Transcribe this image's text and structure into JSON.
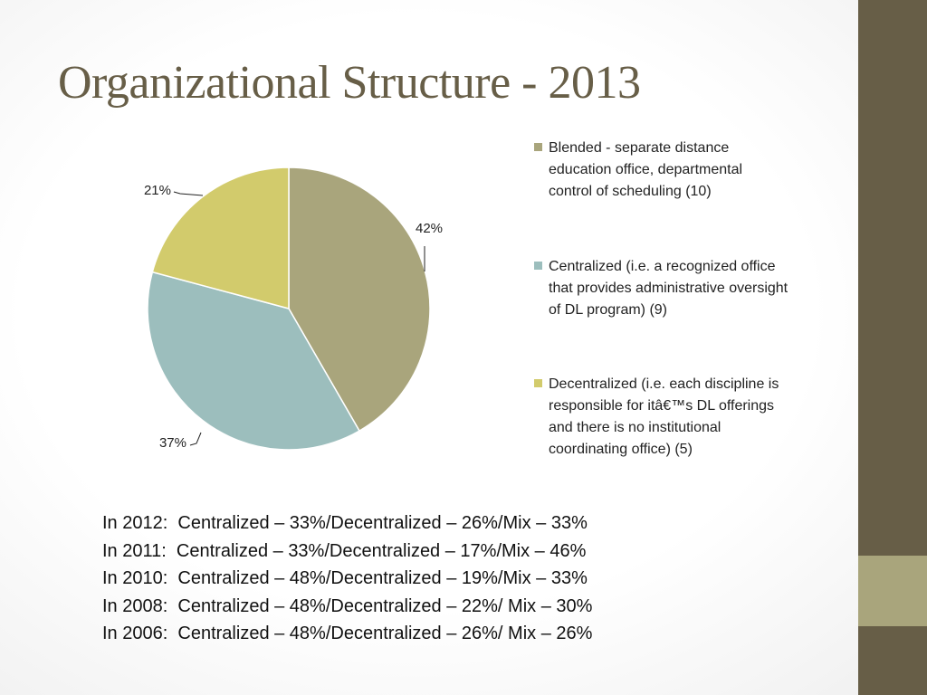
{
  "slide": {
    "title": "Organizational Structure - 2013",
    "colors": {
      "sidebar": "#675e47",
      "sidebar_accent": "#a9a57c",
      "title": "#675e47"
    }
  },
  "chart_data": {
    "type": "pie",
    "title": "",
    "slices": [
      {
        "label": "Blended - separate distance education office, departmental control of scheduling (10)",
        "value": 10,
        "percent_label": "42%",
        "color": "#a9a57c"
      },
      {
        "label": "Centralized (i.e. a recognized office that provides administrative oversight of DL program) (9)",
        "value": 9,
        "percent_label": "37%",
        "color": "#9cbebd"
      },
      {
        "label": "Decentralized (i.e. each discipline is responsible for itâ€™s DL offerings and there is no institutional coordinating office) (5)",
        "value": 5,
        "percent_label": "21%",
        "color": "#d2cb6c"
      }
    ],
    "legend_position": "right"
  },
  "history": [
    "In 2012:  Centralized – 33%/Decentralized – 26%/Mix – 33%",
    "In 2011:  Centralized – 33%/Decentralized – 17%/Mix – 46%",
    "In 2010:  Centralized – 48%/Decentralized – 19%/Mix – 33%",
    "In 2008:  Centralized – 48%/Decentralized – 22%/ Mix – 30%",
    "In 2006:  Centralized – 48%/Decentralized – 26%/ Mix – 26%"
  ]
}
